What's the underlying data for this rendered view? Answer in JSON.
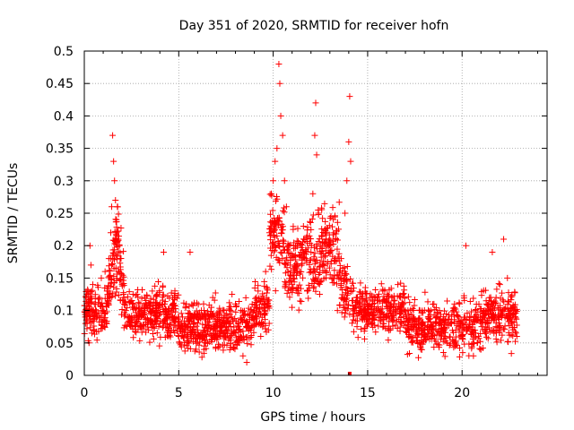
{
  "chart_data": {
    "type": "scatter",
    "title": "Day 351 of 2020, SRMTID for receiver hofn",
    "xlabel": "GPS time / hours",
    "ylabel": "SRMTID / TECUs",
    "xlim": [
      0,
      24.5
    ],
    "ylim": [
      0,
      0.5
    ],
    "xticks": [
      0,
      5,
      10,
      15,
      20
    ],
    "yticks": [
      0,
      0.05,
      0.1,
      0.15,
      0.2,
      0.25,
      0.3,
      0.35,
      0.4,
      0.45,
      0.5
    ],
    "xtick_labels": [
      "0",
      "5",
      "10",
      "15",
      "20"
    ],
    "ytick_labels": [
      "0",
      "0.05",
      "0.1",
      "0.15",
      "0.2",
      "0.25",
      "0.3",
      "0.35",
      "0.4",
      "0.45",
      "0.5"
    ],
    "grid": true,
    "marker": "+",
    "color": "#ff0000",
    "series": [
      {
        "name": "SRMTID",
        "points": [
          [
            0.05,
            0.09
          ],
          [
            0.1,
            0.12
          ],
          [
            0.15,
            0.08
          ],
          [
            0.2,
            0.13
          ],
          [
            0.25,
            0.05
          ],
          [
            0.3,
            0.2
          ],
          [
            0.35,
            0.17
          ],
          [
            0.4,
            0.1
          ],
          [
            0.45,
            0.14
          ],
          [
            0.5,
            0.07
          ],
          [
            0.6,
            0.11
          ],
          [
            0.7,
            0.09
          ],
          [
            0.8,
            0.12
          ],
          [
            0.9,
            0.15
          ],
          [
            1.0,
            0.1
          ],
          [
            1.1,
            0.16
          ],
          [
            1.2,
            0.13
          ],
          [
            1.3,
            0.18
          ],
          [
            1.4,
            0.22
          ],
          [
            1.45,
            0.26
          ],
          [
            1.5,
            0.37
          ],
          [
            1.55,
            0.33
          ],
          [
            1.6,
            0.3
          ],
          [
            1.65,
            0.27
          ],
          [
            1.7,
            0.24
          ],
          [
            1.75,
            0.26
          ],
          [
            1.8,
            0.21
          ],
          [
            1.85,
            0.2
          ],
          [
            1.9,
            0.18
          ],
          [
            2.0,
            0.14
          ],
          [
            2.1,
            0.12
          ],
          [
            2.2,
            0.1
          ],
          [
            2.4,
            0.09
          ],
          [
            2.6,
            0.11
          ],
          [
            2.8,
            0.08
          ],
          [
            3.0,
            0.1
          ],
          [
            3.2,
            0.12
          ],
          [
            3.4,
            0.07
          ],
          [
            3.6,
            0.13
          ],
          [
            3.8,
            0.09
          ],
          [
            4.0,
            0.11
          ],
          [
            4.2,
            0.19
          ],
          [
            4.4,
            0.08
          ],
          [
            4.6,
            0.1
          ],
          [
            4.8,
            0.12
          ],
          [
            5.0,
            0.06
          ],
          [
            5.2,
            0.09
          ],
          [
            5.4,
            0.11
          ],
          [
            5.6,
            0.19
          ],
          [
            5.8,
            0.08
          ],
          [
            6.0,
            0.07
          ],
          [
            6.2,
            0.1
          ],
          [
            6.4,
            0.05
          ],
          [
            6.6,
            0.09
          ],
          [
            6.8,
            0.12
          ],
          [
            7.0,
            0.08
          ],
          [
            7.2,
            0.06
          ],
          [
            7.4,
            0.1
          ],
          [
            7.6,
            0.07
          ],
          [
            7.8,
            0.09
          ],
          [
            8.0,
            0.11
          ],
          [
            8.2,
            0.05
          ],
          [
            8.4,
            0.03
          ],
          [
            8.6,
            0.02
          ],
          [
            8.8,
            0.07
          ],
          [
            9.0,
            0.1
          ],
          [
            9.2,
            0.13
          ],
          [
            9.4,
            0.11
          ],
          [
            9.6,
            0.16
          ],
          [
            9.8,
            0.22
          ],
          [
            9.9,
            0.28
          ],
          [
            10.0,
            0.3
          ],
          [
            10.1,
            0.33
          ],
          [
            10.2,
            0.35
          ],
          [
            10.3,
            0.48
          ],
          [
            10.35,
            0.45
          ],
          [
            10.4,
            0.4
          ],
          [
            10.5,
            0.37
          ],
          [
            10.6,
            0.3
          ],
          [
            10.7,
            0.26
          ],
          [
            10.8,
            0.2
          ],
          [
            10.9,
            0.17
          ],
          [
            11.0,
            0.14
          ],
          [
            11.2,
            0.2
          ],
          [
            11.4,
            0.16
          ],
          [
            11.6,
            0.23
          ],
          [
            11.8,
            0.13
          ],
          [
            12.0,
            0.19
          ],
          [
            12.1,
            0.28
          ],
          [
            12.2,
            0.37
          ],
          [
            12.25,
            0.42
          ],
          [
            12.3,
            0.34
          ],
          [
            12.4,
            0.25
          ],
          [
            12.5,
            0.2
          ],
          [
            12.6,
            0.17
          ],
          [
            12.8,
            0.22
          ],
          [
            13.0,
            0.19
          ],
          [
            13.2,
            0.15
          ],
          [
            13.4,
            0.1
          ],
          [
            13.6,
            0.18
          ],
          [
            13.8,
            0.25
          ],
          [
            13.9,
            0.3
          ],
          [
            14.0,
            0.36
          ],
          [
            14.05,
            0.43
          ],
          [
            14.1,
            0.33
          ],
          [
            14.2,
            0.13
          ],
          [
            14.4,
            0.12
          ],
          [
            14.6,
            0.1
          ],
          [
            14.8,
            0.09
          ],
          [
            15.0,
            0.11
          ],
          [
            15.2,
            0.08
          ],
          [
            15.4,
            0.12
          ],
          [
            15.6,
            0.1
          ],
          [
            15.8,
            0.13
          ],
          [
            16.0,
            0.09
          ],
          [
            16.2,
            0.07
          ],
          [
            16.4,
            0.11
          ],
          [
            16.6,
            0.14
          ],
          [
            16.8,
            0.08
          ],
          [
            17.0,
            0.1
          ],
          [
            17.2,
            0.06
          ],
          [
            17.4,
            0.09
          ],
          [
            17.6,
            0.08
          ],
          [
            17.8,
            0.05
          ],
          [
            18.0,
            0.07
          ],
          [
            18.2,
            0.09
          ],
          [
            18.4,
            0.06
          ],
          [
            18.6,
            0.08
          ],
          [
            18.8,
            0.1
          ],
          [
            19.0,
            0.07
          ],
          [
            19.2,
            0.05
          ],
          [
            19.4,
            0.08
          ],
          [
            19.6,
            0.11
          ],
          [
            19.8,
            0.09
          ],
          [
            20.0,
            0.06
          ],
          [
            20.2,
            0.2
          ],
          [
            20.4,
            0.08
          ],
          [
            20.6,
            0.03
          ],
          [
            20.8,
            0.05
          ],
          [
            21.0,
            0.04
          ],
          [
            21.2,
            0.07
          ],
          [
            21.4,
            0.1
          ],
          [
            21.6,
            0.19
          ],
          [
            21.8,
            0.12
          ],
          [
            22.0,
            0.14
          ],
          [
            22.2,
            0.21
          ],
          [
            22.4,
            0.15
          ],
          [
            22.6,
            0.08
          ],
          [
            22.8,
            0.1
          ],
          [
            22.9,
            0.06
          ]
        ]
      }
    ],
    "dense_band": {
      "description": "background scatter following the trend curve",
      "count": 2300,
      "x_range": [
        0,
        22.9
      ]
    }
  }
}
